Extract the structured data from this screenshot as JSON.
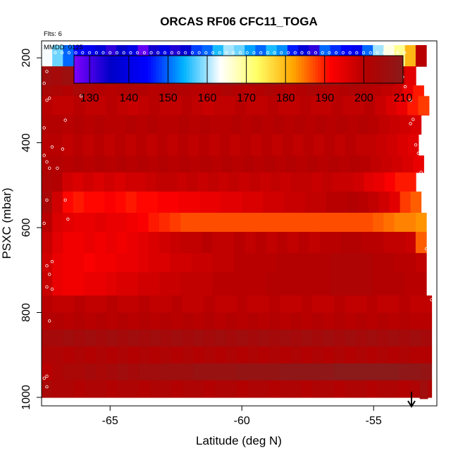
{
  "chart_data": {
    "type": "heatmap",
    "title": "ORCAS RF06 CFC11_TOGA",
    "flights_note": "Flts: 6",
    "date_note": "MMDD: 0125",
    "xlabel": "Latitude (deg N)",
    "ylabel": "PSXC (mbar)",
    "xlim": [
      -67.6,
      -52.6
    ],
    "ylim": [
      1020,
      160
    ],
    "y_reversed": true,
    "grid": false,
    "x_ticks": [
      -65,
      -60,
      -55
    ],
    "x_tick_labels": [
      "-65",
      "-60",
      "-55"
    ],
    "y_ticks": [
      200,
      400,
      600,
      800,
      1000
    ],
    "y_tick_labels": [
      "200",
      "400",
      "600",
      "800",
      "1000"
    ],
    "colorbar": {
      "position": "top",
      "min": 126,
      "max": 210,
      "ticks": [
        130,
        140,
        150,
        160,
        170,
        180,
        190,
        200,
        210
      ],
      "tick_labels": [
        "130",
        "140",
        "150",
        "160",
        "170",
        "180",
        "190",
        "200",
        "210"
      ],
      "stops": [
        "#7f00ff",
        "#0000c8",
        "#0000ff",
        "#00b4ff",
        "#ffffff",
        "#ffff66",
        "#ffa500",
        "#ff0000",
        "#b40000",
        "#8b1a1a"
      ]
    },
    "layers": [
      {
        "p_top": 170,
        "p_bottom": 220,
        "lat_max": -53.0,
        "values": [
          163,
          158,
          150,
          145,
          142,
          138,
          132,
          136,
          140,
          128,
          134,
          140,
          133,
          137,
          148,
          150,
          155,
          160,
          158,
          153,
          150,
          155,
          152,
          146,
          138,
          132,
          150,
          147,
          144,
          142,
          150,
          160,
          165,
          170,
          180,
          200
        ]
      },
      {
        "p_top": 220,
        "p_bottom": 265,
        "lat_max": -53.4,
        "values": [
          205,
          204,
          206,
          204,
          205,
          204,
          205,
          203,
          204,
          205,
          206,
          205,
          204,
          206,
          205,
          204,
          206,
          205,
          207,
          206,
          205,
          204,
          206,
          206,
          205,
          206,
          207,
          208,
          206,
          205,
          204,
          203,
          202,
          201,
          198,
          195
        ]
      },
      {
        "p_top": 265,
        "p_bottom": 290,
        "lat_max": -53.1,
        "values": [
          203,
          202,
          201,
          203,
          202,
          201,
          200,
          201,
          202,
          201,
          200,
          201,
          202,
          201,
          200,
          200,
          201,
          202,
          201,
          200,
          201,
          202,
          201,
          200,
          201,
          202,
          201,
          200,
          201,
          202,
          201,
          200,
          199,
          198,
          194,
          190
        ]
      },
      {
        "p_top": 290,
        "p_bottom": 335,
        "lat_max": -52.9,
        "values": [
          200,
          199,
          199,
          200,
          199,
          199,
          200,
          199,
          198,
          199,
          200,
          199,
          199,
          200,
          199,
          198,
          199,
          199,
          200,
          199,
          199,
          200,
          199,
          199,
          200,
          199,
          199,
          200,
          199,
          199,
          200,
          198,
          196,
          194,
          190,
          188
        ]
      },
      {
        "p_top": 335,
        "p_bottom": 380,
        "lat_max": -53.2,
        "values": [
          201,
          201,
          200,
          201,
          200,
          201,
          200,
          200,
          201,
          200,
          201,
          200,
          200,
          201,
          200,
          201,
          200,
          200,
          201,
          200,
          201,
          200,
          201,
          200,
          201,
          200,
          201,
          200,
          201,
          200,
          201,
          200,
          199,
          198,
          197,
          196
        ]
      },
      {
        "p_top": 380,
        "p_bottom": 430,
        "lat_max": -53.3,
        "values": [
          200,
          200,
          199,
          200,
          199,
          200,
          199,
          200,
          199,
          200,
          199,
          200,
          199,
          200,
          199,
          200,
          199,
          200,
          199,
          200,
          199,
          200,
          199,
          200,
          199,
          200,
          199,
          200,
          199,
          200,
          199,
          199,
          198,
          197,
          196,
          195
        ]
      },
      {
        "p_top": 430,
        "p_bottom": 470,
        "lat_max": -53.1,
        "values": [
          201,
          201,
          200,
          201,
          200,
          201,
          200,
          201,
          200,
          201,
          200,
          201,
          200,
          201,
          200,
          201,
          200,
          201,
          200,
          201,
          200,
          201,
          200,
          201,
          200,
          201,
          200,
          201,
          200,
          201,
          200,
          199,
          198,
          197,
          196,
          194
        ]
      },
      {
        "p_top": 470,
        "p_bottom": 515,
        "lat_max": -53.4,
        "values": [
          202,
          201,
          197,
          196,
          197,
          196,
          197,
          196,
          197,
          197,
          198,
          199,
          199,
          198,
          199,
          198,
          199,
          198,
          199,
          198,
          199,
          198,
          199,
          198,
          199,
          199,
          198,
          199,
          198,
          198,
          197,
          195,
          194,
          192,
          190,
          190
        ]
      },
      {
        "p_top": 515,
        "p_bottom": 565,
        "lat_max": -53.2,
        "values": [
          203,
          197,
          191,
          190,
          191,
          191,
          192,
          191,
          190,
          191,
          191,
          192,
          192,
          193,
          193,
          194,
          194,
          195,
          195,
          196,
          196,
          197,
          197,
          198,
          198,
          199,
          199,
          200,
          200,
          201,
          200,
          199,
          197,
          195,
          188,
          186
        ]
      },
      {
        "p_top": 565,
        "p_bottom": 610,
        "lat_max": -53.0,
        "values": [
          200,
          196,
          195,
          194,
          194,
          195,
          194,
          194,
          193,
          192,
          190,
          189,
          188,
          187,
          187,
          187,
          187,
          187,
          187,
          187,
          187,
          187,
          187,
          187,
          187,
          187,
          187,
          187,
          187,
          187,
          187,
          186,
          185,
          184,
          184,
          183
        ]
      },
      {
        "p_top": 610,
        "p_bottom": 660,
        "lat_max": -53.0,
        "values": [
          198,
          195,
          193,
          193,
          194,
          193,
          194,
          193,
          194,
          195,
          196,
          197,
          198,
          199,
          199,
          200,
          199,
          199,
          200,
          199,
          200,
          199,
          200,
          199,
          200,
          199,
          200,
          200,
          201,
          201,
          200,
          200,
          199,
          199,
          198,
          186
        ]
      },
      {
        "p_top": 660,
        "p_bottom": 705,
        "lat_max": -53.0,
        "values": [
          197,
          194,
          193,
          193,
          192,
          193,
          193,
          194,
          194,
          195,
          196,
          196,
          197,
          197,
          198,
          198,
          199,
          199,
          200,
          200,
          200,
          200,
          201,
          201,
          201,
          201,
          201,
          202,
          202,
          202,
          202,
          201,
          201,
          200,
          200,
          199
        ]
      },
      {
        "p_top": 705,
        "p_bottom": 760,
        "lat_max": -53.0,
        "values": [
          198,
          194,
          193,
          193,
          194,
          194,
          195,
          196,
          196,
          197,
          197,
          198,
          198,
          199,
          199,
          199,
          200,
          200,
          200,
          200,
          200,
          201,
          201,
          201,
          201,
          201,
          201,
          202,
          202,
          202,
          202,
          201,
          201,
          201,
          200,
          200
        ]
      },
      {
        "p_top": 760,
        "p_bottom": 800,
        "lat_max": -52.8,
        "values": [
          200,
          199,
          199,
          200,
          199,
          199,
          200,
          199,
          199,
          200,
          199,
          199,
          200,
          199,
          199,
          200,
          199,
          199,
          200,
          199,
          199,
          200,
          199,
          199,
          200,
          199,
          199,
          200,
          199,
          199,
          200,
          199,
          199,
          200,
          199,
          199
        ]
      },
      {
        "p_top": 800,
        "p_bottom": 840,
        "lat_max": -52.8,
        "values": [
          201,
          201,
          200,
          201,
          200,
          201,
          200,
          201,
          200,
          201,
          200,
          201,
          200,
          201,
          200,
          201,
          200,
          201,
          200,
          201,
          200,
          201,
          200,
          201,
          200,
          201,
          200,
          201,
          200,
          201,
          200,
          201,
          200,
          201,
          200,
          200
        ]
      },
      {
        "p_top": 840,
        "p_bottom": 880,
        "lat_max": -52.8,
        "values": [
          204,
          204,
          205,
          204,
          205,
          204,
          205,
          204,
          205,
          204,
          205,
          204,
          205,
          204,
          205,
          204,
          205,
          204,
          205,
          204,
          205,
          204,
          205,
          204,
          205,
          204,
          205,
          204,
          205,
          204,
          205,
          204,
          205,
          204,
          205,
          204
        ]
      },
      {
        "p_top": 880,
        "p_bottom": 920,
        "lat_max": -52.8,
        "values": [
          202,
          202,
          201,
          202,
          201,
          202,
          201,
          202,
          201,
          202,
          201,
          202,
          201,
          202,
          201,
          202,
          201,
          202,
          201,
          202,
          201,
          202,
          201,
          202,
          201,
          202,
          201,
          202,
          201,
          202,
          201,
          202,
          201,
          202,
          201,
          201
        ]
      },
      {
        "p_top": 920,
        "p_bottom": 960,
        "lat_max": -52.8,
        "values": [
          200,
          202,
          203,
          203,
          204,
          203,
          204,
          205,
          204,
          205,
          205,
          206,
          206,
          206,
          207,
          207,
          207,
          207,
          208,
          208,
          208,
          208,
          209,
          209,
          209,
          209,
          209,
          210,
          210,
          210,
          210,
          210,
          210,
          209,
          209,
          208
        ]
      },
      {
        "p_top": 960,
        "p_bottom": 1000,
        "lat_max": -52.8,
        "values": [
          203,
          202,
          202,
          201,
          202,
          202,
          201,
          202,
          202,
          201,
          202,
          202,
          201,
          202,
          202,
          201,
          202,
          202,
          201,
          202,
          202,
          201,
          202,
          202,
          201,
          202,
          202,
          201,
          202,
          202,
          201,
          202,
          202,
          201,
          202,
          202
        ]
      },
      {
        "p_top": 960,
        "p_bottom": 1003,
        "lat_min": -53.25,
        "lat_max": -52.95,
        "values": [
          205
        ]
      }
    ],
    "sample_points": [
      {
        "lat": -67.5,
        "p": 215
      },
      {
        "lat": -67.4,
        "p": 232
      },
      {
        "lat": -67.5,
        "p": 260
      },
      {
        "lat": -67.3,
        "p": 295
      },
      {
        "lat": -67.4,
        "p": 300
      },
      {
        "lat": -67.5,
        "p": 365
      },
      {
        "lat": -67.2,
        "p": 410
      },
      {
        "lat": -67.5,
        "p": 430
      },
      {
        "lat": -67.4,
        "p": 445
      },
      {
        "lat": -67.3,
        "p": 460
      },
      {
        "lat": -67.4,
        "p": 535
      },
      {
        "lat": -66.7,
        "p": 535
      },
      {
        "lat": -66.6,
        "p": 580
      },
      {
        "lat": -67.5,
        "p": 590
      },
      {
        "lat": -67.2,
        "p": 680
      },
      {
        "lat": -67.3,
        "p": 710
      },
      {
        "lat": -67.4,
        "p": 690
      },
      {
        "lat": -67.2,
        "p": 745
      },
      {
        "lat": -67.4,
        "p": 740
      },
      {
        "lat": -67.3,
        "p": 820
      },
      {
        "lat": -67.4,
        "p": 950
      },
      {
        "lat": -67.5,
        "p": 955
      },
      {
        "lat": -67.4,
        "p": 975
      },
      {
        "lat": -65.7,
        "p": 240
      },
      {
        "lat": -66.1,
        "p": 290
      },
      {
        "lat": -66.7,
        "p": 347
      },
      {
        "lat": -66.8,
        "p": 415
      },
      {
        "lat": -67.0,
        "p": 460
      },
      {
        "lat": -54.1,
        "p": 220
      },
      {
        "lat": -53.9,
        "p": 245
      },
      {
        "lat": -53.8,
        "p": 268
      },
      {
        "lat": -53.6,
        "p": 300
      },
      {
        "lat": -53.5,
        "p": 345
      },
      {
        "lat": -53.6,
        "p": 355
      },
      {
        "lat": -53.4,
        "p": 405
      },
      {
        "lat": -53.3,
        "p": 425
      },
      {
        "lat": -53.2,
        "p": 470
      },
      {
        "lat": -53.1,
        "p": 520
      },
      {
        "lat": -53.0,
        "p": 555
      },
      {
        "lat": -52.9,
        "p": 590
      },
      {
        "lat": -53.0,
        "p": 650
      },
      {
        "lat": -52.8,
        "p": 770
      },
      {
        "lat": -52.7,
        "p": 870
      },
      {
        "lat": -52.6,
        "p": 960
      }
    ]
  }
}
